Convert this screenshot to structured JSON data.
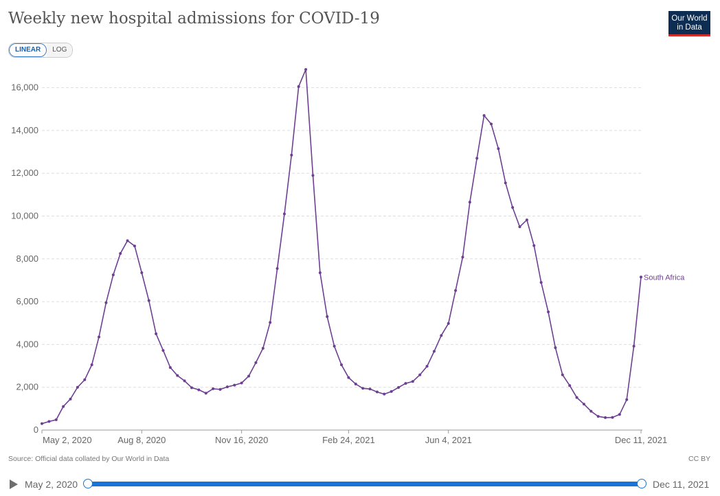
{
  "header": {
    "title": "Weekly new hospital admissions for COVID-19",
    "logo_line1": "Our World",
    "logo_line2": "in Data"
  },
  "scale_toggle": {
    "linear_label": "LINEAR",
    "log_label": "LOG",
    "selected": "LINEAR"
  },
  "footer": {
    "source": "Source: Official data collated by Our World in Data",
    "license": "CC BY"
  },
  "timeline": {
    "start_label": "May 2, 2020",
    "end_label": "Dec 11, 2021"
  },
  "colors": {
    "series": "#6d3e91",
    "grid": "#dddddd",
    "track": "#1a73d9"
  },
  "chart_data": {
    "type": "line",
    "title": "Weekly new hospital admissions for COVID-19",
    "xlabel": "",
    "ylabel": "",
    "ylim": [
      0,
      17000
    ],
    "yticks": [
      0,
      2000,
      4000,
      6000,
      8000,
      10000,
      12000,
      14000,
      16000
    ],
    "ytick_labels": [
      "0",
      "2,000",
      "4,000",
      "6,000",
      "8,000",
      "10,000",
      "12,000",
      "14,000",
      "16,000"
    ],
    "xtick_labels": [
      {
        "label": "May 2, 2020",
        "index": 0
      },
      {
        "label": "Aug 8, 2020",
        "index": 14
      },
      {
        "label": "Nov 16, 2020",
        "index": 28
      },
      {
        "label": "Feb 24, 2021",
        "index": 43
      },
      {
        "label": "Jun 4, 2021",
        "index": 57
      },
      {
        "label": "Dec 11, 2021",
        "index": 84
      }
    ],
    "grid": "horizontal dashed",
    "series": [
      {
        "name": "South Africa",
        "values": [
          300,
          400,
          480,
          1100,
          1450,
          2000,
          2350,
          3050,
          4350,
          5950,
          7250,
          8250,
          8850,
          8600,
          7350,
          6050,
          4500,
          3720,
          2920,
          2550,
          2300,
          1980,
          1880,
          1720,
          1930,
          1900,
          2020,
          2100,
          2200,
          2520,
          3150,
          3820,
          5030,
          7550,
          10100,
          12850,
          16050,
          16850,
          11900,
          7350,
          5300,
          3920,
          3050,
          2450,
          2150,
          1950,
          1920,
          1780,
          1680,
          1800,
          1990,
          2180,
          2270,
          2580,
          2980,
          3680,
          4420,
          4980,
          6520,
          8080,
          10650,
          12700,
          14700,
          14300,
          13150,
          11550,
          10400,
          9500,
          9820,
          8620,
          6900,
          5520,
          3850,
          2580,
          2080,
          1520,
          1210,
          880,
          640,
          580,
          590,
          730,
          1420,
          3920,
          7150
        ]
      }
    ]
  }
}
